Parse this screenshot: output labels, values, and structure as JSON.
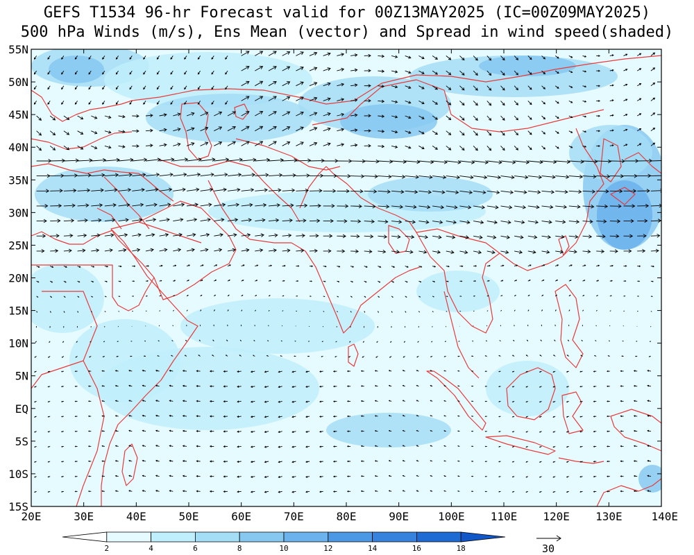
{
  "header": {
    "title_line1": "GEFS T1534 96-hr Forecast valid for 00Z13MAY2025 (IC=00Z09MAY2025)",
    "title_line2": "500 hPa Winds (m/s), Ens Mean (vector) and Spread in wind speed(shaded)"
  },
  "map": {
    "lat_labels": [
      "55N",
      "50N",
      "45N",
      "40N",
      "35N",
      "30N",
      "25N",
      "20N",
      "15N",
      "10N",
      "5N",
      "EQ",
      "5S",
      "10S",
      "15S"
    ],
    "lat_values": [
      55,
      50,
      45,
      40,
      35,
      30,
      25,
      20,
      15,
      10,
      5,
      0,
      -5,
      -10,
      -15
    ],
    "lon_labels": [
      "20E",
      "30E",
      "40E",
      "50E",
      "60E",
      "70E",
      "80E",
      "90E",
      "100E",
      "110E",
      "120E",
      "130E",
      "140E"
    ],
    "lon_values": [
      20,
      30,
      40,
      50,
      60,
      70,
      80,
      90,
      100,
      110,
      120,
      130,
      140
    ],
    "lon_range": [
      20,
      140
    ],
    "lat_range": [
      -15,
      55
    ],
    "coastline_color": "#e83a3a",
    "base_shade_color": "#e6fbff",
    "vector_color": "#000000"
  },
  "colorbar": {
    "levels": [
      "2",
      "4",
      "6",
      "8",
      "10",
      "12",
      "14",
      "16",
      "18"
    ],
    "colors": [
      "#ffffff",
      "#e6fbff",
      "#bfeefc",
      "#a4ddf6",
      "#87c8f1",
      "#6cb2ec",
      "#4d98e4",
      "#3682dd",
      "#1f6bd4",
      "#1257c8"
    ]
  },
  "reference_vector": {
    "label": "30"
  }
}
